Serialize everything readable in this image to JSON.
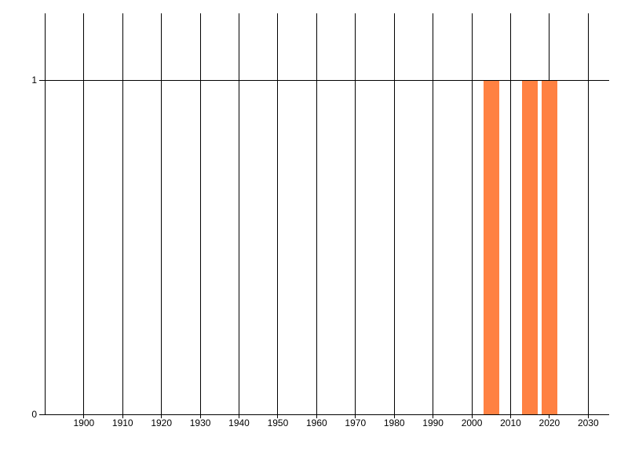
{
  "chart": {
    "background_color": "#ffffff",
    "bar_color": "#ff8142",
    "line_color": "#000000",
    "text_color": "#000000"
  },
  "chart_data": {
    "type": "bar",
    "title": "",
    "xlabel": "",
    "ylabel": "",
    "x": [
      2005,
      2015,
      2020
    ],
    "values": [
      1,
      1,
      1
    ],
    "bar_width_x_units": 4,
    "xlim": [
      1888.4,
      2035.4
    ],
    "ylim": [
      0,
      1.2
    ],
    "x_gridlines": [
      1890,
      1900,
      1910,
      1920,
      1930,
      1940,
      1950,
      1960,
      1970,
      1980,
      1990,
      2000,
      2010,
      2020,
      2030
    ],
    "x_ticks": [
      1900,
      1910,
      1920,
      1930,
      1940,
      1950,
      1960,
      1970,
      1980,
      1990,
      2000,
      2010,
      2020,
      2030
    ],
    "x_tick_labels": [
      "1900",
      "1910",
      "1920",
      "1930",
      "1940",
      "1950",
      "1960",
      "1970",
      "1980",
      "1990",
      "2000",
      "2010",
      "2020",
      "2030"
    ],
    "y_ticks": [
      0,
      1
    ],
    "y_tick_labels": [
      "0",
      "1"
    ],
    "grid": true,
    "legend": false
  }
}
